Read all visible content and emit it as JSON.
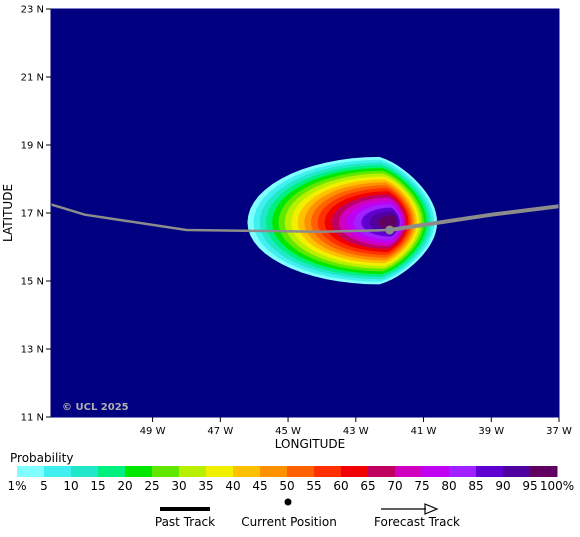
{
  "map": {
    "lat_range": [
      11,
      23
    ],
    "lon_range": [
      -52,
      -37
    ],
    "background_color": "#000080",
    "lat_ticks": [
      "23 N",
      "21 N",
      "19 N",
      "17 N",
      "15 N",
      "13 N",
      "11 N"
    ],
    "lon_ticks": [
      "49 W",
      "47 W",
      "45 W",
      "43 W",
      "41 W",
      "39 W",
      "37 W"
    ],
    "xlabel": "LONGITUDE",
    "ylabel": "LATITUDE",
    "watermark": "© UCL 2025",
    "current_position": {
      "lat": 16.5,
      "lon": -42.0
    },
    "past_track": [
      {
        "lat": 17.25,
        "lon": -52.0
      },
      {
        "lat": 16.95,
        "lon": -51.0
      },
      {
        "lat": 16.5,
        "lon": -48.0
      },
      {
        "lat": 16.45,
        "lon": -44.0
      },
      {
        "lat": 16.5,
        "lon": -42.0
      }
    ],
    "forecast_track": [
      {
        "lat": 16.5,
        "lon": -42.0
      },
      {
        "lat": 16.65,
        "lon": -41.0
      },
      {
        "lat": 16.95,
        "lon": -39.0
      },
      {
        "lat": 17.2,
        "lon": -37.0
      }
    ],
    "probability_field": {
      "center": {
        "lat": 16.72,
        "lon": -42.3
      },
      "max_percent": 100,
      "extent_percent_1": {
        "lon_min": -46.2,
        "lon_max": -40.6,
        "lat_min": 14.9,
        "lat_max": 18.65
      }
    },
    "colors": {
      "track": "#8c8c8c",
      "current_position": "#8c8c8c",
      "watermark": "#b0b0b0"
    }
  },
  "legend": {
    "title": "Probability",
    "labels": [
      "1%",
      "5",
      "10",
      "15",
      "20",
      "25",
      "30",
      "35",
      "40",
      "45",
      "50",
      "55",
      "60",
      "65",
      "70",
      "75",
      "80",
      "85",
      "90",
      "95",
      "100%"
    ],
    "colors": [
      "#80ffff",
      "#40f0f0",
      "#20e8c8",
      "#00f080",
      "#00e800",
      "#60e800",
      "#b8f000",
      "#f0f000",
      "#ffc000",
      "#ff9000",
      "#ff6000",
      "#ff3000",
      "#f00000",
      "#c00060",
      "#d000c0",
      "#c000f0",
      "#a020ff",
      "#6000d0",
      "#5000a0",
      "#600060"
    ],
    "symbols": {
      "past_track": "Past Track",
      "current_position": "Current Position",
      "forecast_track": "Forecast Track"
    }
  }
}
